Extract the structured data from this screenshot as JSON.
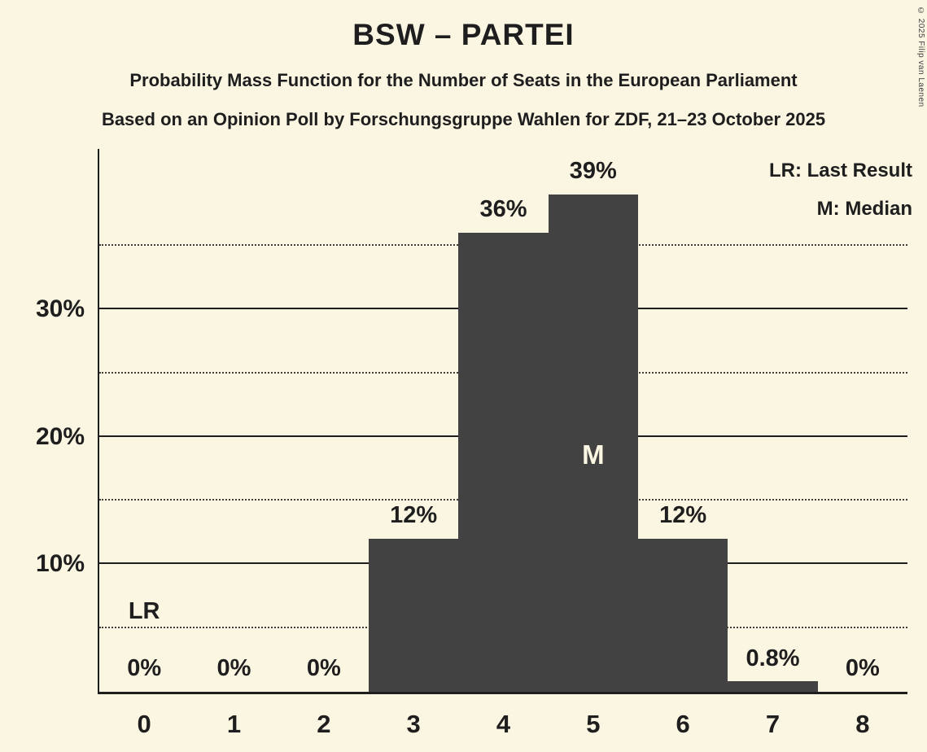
{
  "title": "BSW – PARTEI",
  "subtitle1": "Probability Mass Function for the Number of Seats in the European Parliament",
  "subtitle2": "Based on an Opinion Poll by Forschungsgruppe Wahlen for ZDF, 21–23 October 2025",
  "legend": {
    "lr": "LR: Last Result",
    "m": "M: Median"
  },
  "copyright": "© 2025 Filip van Laenen",
  "chart_data": {
    "type": "bar",
    "categories": [
      "0",
      "1",
      "2",
      "3",
      "4",
      "5",
      "6",
      "7",
      "8"
    ],
    "values": [
      0,
      0,
      0,
      12,
      36,
      39,
      12,
      0.8,
      0
    ],
    "value_labels": [
      "0%",
      "0%",
      "0%",
      "12%",
      "36%",
      "39%",
      "12%",
      "0.8%",
      "0%"
    ],
    "title": "BSW – PARTEI",
    "xlabel": "",
    "ylabel": "",
    "ylim": [
      0,
      42.6
    ],
    "yticks": [
      10,
      20,
      30
    ],
    "ytick_labels": [
      "10%",
      "20%",
      "30%"
    ],
    "gridlines_solid": [
      10,
      20,
      30
    ],
    "gridlines_dotted": [
      5,
      15,
      25,
      35
    ],
    "legend_position": "top-right",
    "median_seat": "5",
    "median_marker": "M",
    "last_result_seat": "0",
    "last_result_marker": "LR",
    "bar_color": "#424242",
    "background_color": "#FBF6E2",
    "text_color": "#1e1e1e",
    "median_label_color": "#FBF6E2"
  }
}
